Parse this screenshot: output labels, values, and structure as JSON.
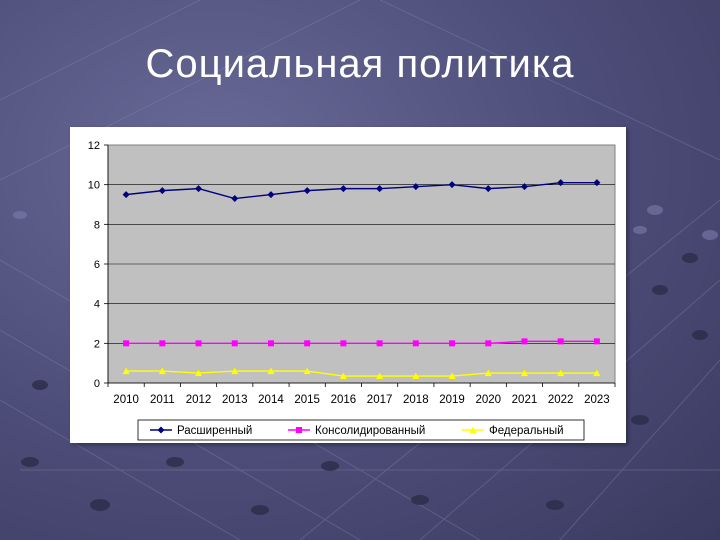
{
  "slide": {
    "title": "Социальная политика"
  },
  "colors": {
    "series_1": "#000080",
    "series_2": "#ff00ff",
    "series_3": "#ffff00",
    "plot_background": "#c0c0c0"
  },
  "chart_data": {
    "type": "line",
    "title": "",
    "xlabel": "",
    "ylabel": "",
    "ylim": [
      0,
      12
    ],
    "y_ticks": [
      "0",
      "2",
      "4",
      "6",
      "8",
      "10",
      "12"
    ],
    "grid": true,
    "legend_position": "bottom",
    "categories": [
      "2010",
      "2011",
      "2012",
      "2013",
      "2014",
      "2015",
      "2016",
      "2017",
      "2018",
      "2019",
      "2020",
      "2021",
      "2022",
      "2023"
    ],
    "series": [
      {
        "name": "Расширенный",
        "marker": "diamond",
        "values": [
          9.5,
          9.7,
          9.8,
          9.3,
          9.5,
          9.7,
          9.8,
          9.8,
          9.9,
          10.0,
          9.8,
          9.9,
          10.1,
          10.1
        ]
      },
      {
        "name": "Консолидированный",
        "marker": "square",
        "values": [
          2.0,
          2.0,
          2.0,
          2.0,
          2.0,
          2.0,
          2.0,
          2.0,
          2.0,
          2.0,
          2.0,
          2.1,
          2.1,
          2.1
        ]
      },
      {
        "name": "Федеральный",
        "marker": "triangle",
        "values": [
          0.6,
          0.6,
          0.5,
          0.6,
          0.6,
          0.6,
          0.35,
          0.35,
          0.35,
          0.35,
          0.5,
          0.5,
          0.5,
          0.5
        ]
      }
    ]
  }
}
